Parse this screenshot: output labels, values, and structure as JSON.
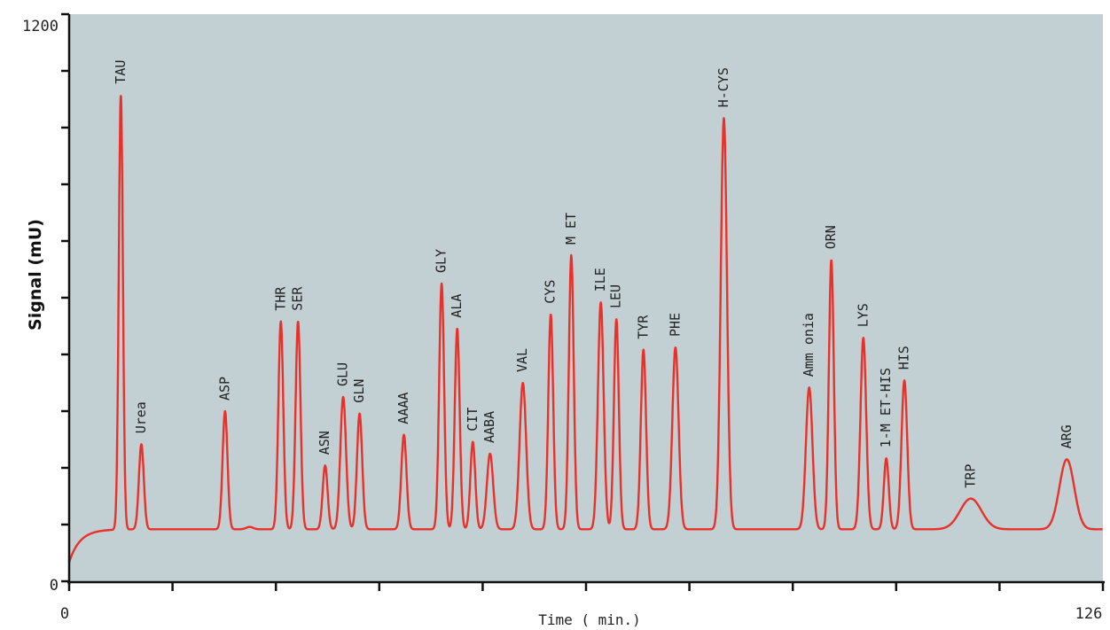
{
  "chart_data": {
    "type": "line",
    "title": "",
    "xlabel": "Time ( min.)",
    "ylabel": "Signal (mU)",
    "xlim": [
      0,
      126
    ],
    "ylim": [
      0,
      1200
    ],
    "x_tick_labels": [
      "0",
      "126"
    ],
    "y_tick_labels": [
      "0",
      "1200"
    ],
    "x_ticks": [
      0,
      12.6,
      25.2,
      37.8,
      50.4,
      63,
      75.6,
      88.2,
      100.8,
      113.4,
      126
    ],
    "y_ticks": [
      0,
      120,
      240,
      360,
      480,
      600,
      720,
      840,
      960,
      1080,
      1200
    ],
    "grid": false,
    "background_color": "#c3d0d3",
    "line_color": "#e8312b",
    "baseline": 110,
    "peaks": [
      {
        "name": "TAU",
        "x": 6.3,
        "y": 1030,
        "w": 0.25
      },
      {
        "name": "Urea",
        "x": 8.8,
        "y": 290,
        "w": 0.3
      },
      {
        "name": "ASP",
        "x": 19.0,
        "y": 360,
        "w": 0.3
      },
      {
        "name": "THR",
        "x": 25.8,
        "y": 550,
        "w": 0.3
      },
      {
        "name": "SER",
        "x": 27.9,
        "y": 550,
        "w": 0.3
      },
      {
        "name": "ASN",
        "x": 31.2,
        "y": 245,
        "w": 0.3
      },
      {
        "name": "GLU",
        "x": 33.4,
        "y": 390,
        "w": 0.35
      },
      {
        "name": "GLN",
        "x": 35.4,
        "y": 355,
        "w": 0.32
      },
      {
        "name": "AAAA",
        "x": 40.8,
        "y": 310,
        "w": 0.32
      },
      {
        "name": "GLY",
        "x": 45.4,
        "y": 630,
        "w": 0.3
      },
      {
        "name": "ALA",
        "x": 47.3,
        "y": 535,
        "w": 0.3
      },
      {
        "name": "CIT",
        "x": 49.2,
        "y": 295,
        "w": 0.3
      },
      {
        "name": "AABA",
        "x": 51.3,
        "y": 270,
        "w": 0.38
      },
      {
        "name": "VAL",
        "x": 55.3,
        "y": 420,
        "w": 0.4
      },
      {
        "name": "CYS",
        "x": 58.7,
        "y": 565,
        "w": 0.3
      },
      {
        "name": "M ET",
        "x": 61.2,
        "y": 690,
        "w": 0.3
      },
      {
        "name": "ILE",
        "x": 64.8,
        "y": 590,
        "w": 0.35
      },
      {
        "name": "LEU",
        "x": 66.7,
        "y": 555,
        "w": 0.3
      },
      {
        "name": "TYR",
        "x": 70.0,
        "y": 490,
        "w": 0.32
      },
      {
        "name": "PHE",
        "x": 73.9,
        "y": 495,
        "w": 0.38
      },
      {
        "name": "H-CYS",
        "x": 79.8,
        "y": 980,
        "w": 0.38
      },
      {
        "name": "Amm  onia",
        "x": 90.2,
        "y": 410,
        "w": 0.4
      },
      {
        "name": "ORN",
        "x": 92.9,
        "y": 680,
        "w": 0.3
      },
      {
        "name": "LYS",
        "x": 96.8,
        "y": 515,
        "w": 0.35
      },
      {
        "name": "1-M ET-HIS",
        "x": 99.6,
        "y": 260,
        "w": 0.3
      },
      {
        "name": "HIS",
        "x": 101.8,
        "y": 425,
        "w": 0.35
      },
      {
        "name": "TRP",
        "x": 109.9,
        "y": 175,
        "w": 1.3
      },
      {
        "name": "ARG",
        "x": 121.6,
        "y": 258,
        "w": 0.9
      }
    ]
  }
}
